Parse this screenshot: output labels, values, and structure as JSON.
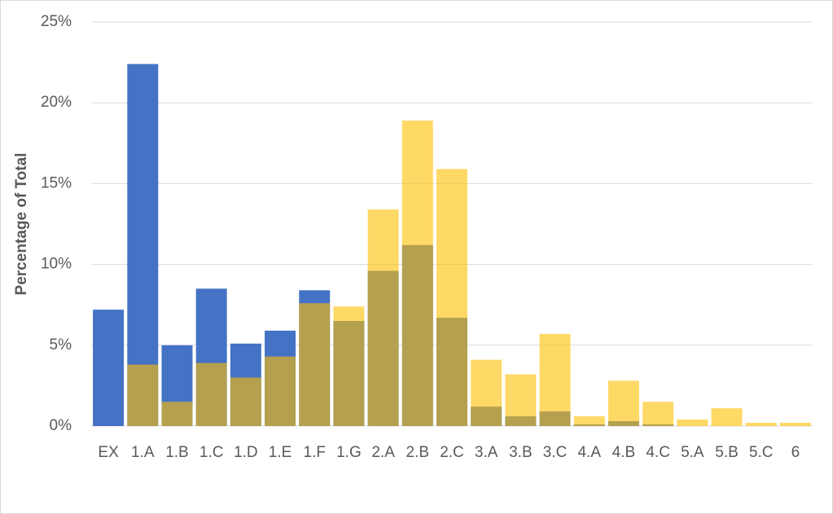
{
  "chart_data": {
    "type": "overlap-bar",
    "y_label": "Percentage of Total",
    "categories": [
      "EX",
      "1.A",
      "1.B",
      "1.C",
      "1.D",
      "1.E",
      "1.F",
      "1.G",
      "2.A",
      "2.B",
      "2.C",
      "3.A",
      "3.B",
      "3.C",
      "4.A",
      "4.B",
      "4.C",
      "5.A",
      "5.B",
      "5.C",
      "6"
    ],
    "series": [
      {
        "color": "#4472c4",
        "opacity": 1,
        "values": [
          7.2,
          22.4,
          5.0,
          8.5,
          5.1,
          5.9,
          8.4,
          6.5,
          9.6,
          11.2,
          6.7,
          1.2,
          0.6,
          0.9,
          0.1,
          0.3,
          0.1,
          0,
          0,
          0,
          0
        ]
      },
      {
        "color": "#ffc000",
        "opacity": 0.6,
        "values": [
          0,
          3.8,
          1.5,
          3.9,
          3.0,
          4.3,
          7.6,
          7.4,
          13.4,
          18.9,
          15.9,
          4.1,
          3.2,
          5.7,
          0.6,
          2.8,
          1.5,
          0.4,
          1.1,
          0.2,
          0.2
        ]
      }
    ],
    "ylim": [
      0,
      25
    ],
    "yticks": [
      {
        "value": 0,
        "label": "0%"
      },
      {
        "value": 5,
        "label": "5%"
      },
      {
        "value": 10,
        "label": "10%"
      },
      {
        "value": 15,
        "label": "15%"
      },
      {
        "value": 20,
        "label": "20%"
      },
      {
        "value": 25,
        "label": "25%"
      }
    ],
    "grid": true
  }
}
